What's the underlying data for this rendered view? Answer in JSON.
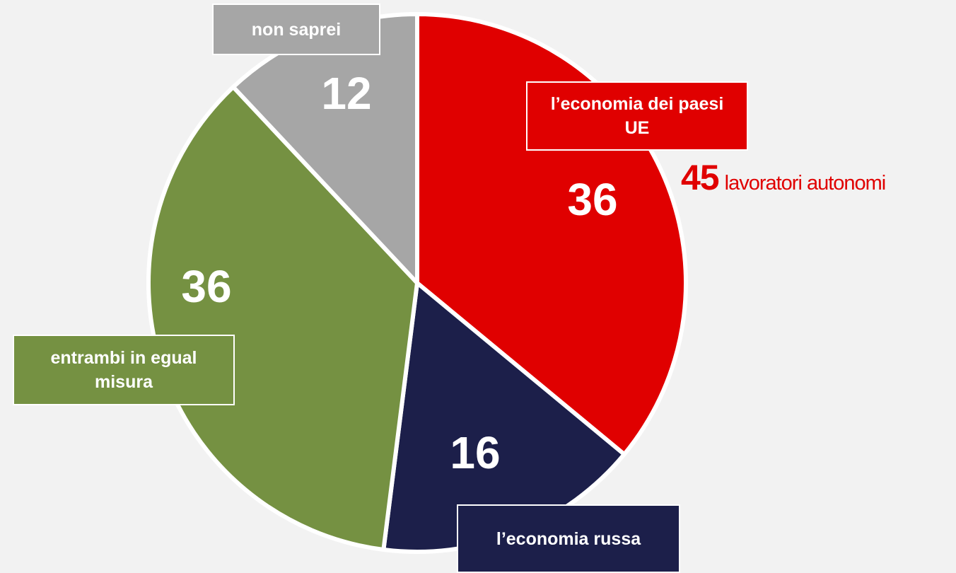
{
  "chart_data": {
    "type": "pie",
    "categories": [
      "l’economia dei paesi UE",
      "l’economia russa",
      "entrambi in egual misura",
      "non saprei"
    ],
    "values": [
      36,
      16,
      36,
      12
    ],
    "colors": [
      "#e00000",
      "#1c1f4a",
      "#759142",
      "#a6a6a6"
    ],
    "annotation": {
      "value": 45,
      "text": "lavoratori autonomi"
    }
  }
}
